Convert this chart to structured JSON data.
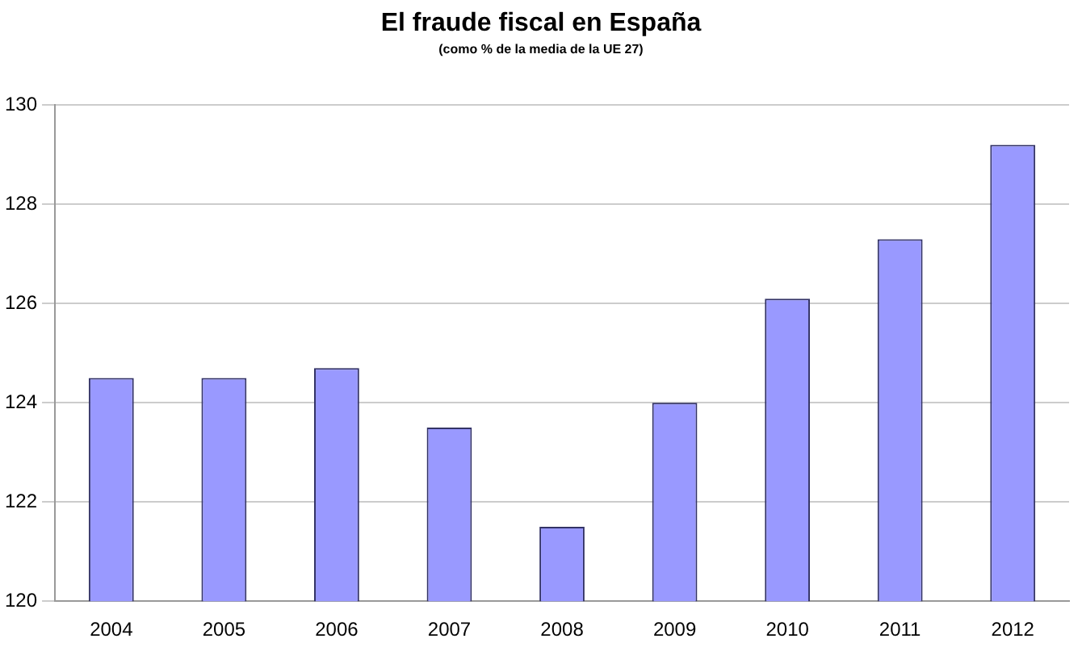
{
  "chart_data": {
    "type": "bar",
    "title": "El fraude fiscal en España",
    "subtitle": "(como % de la media de la UE 27)",
    "categories": [
      "2004",
      "2005",
      "2006",
      "2007",
      "2008",
      "2009",
      "2010",
      "2011",
      "2012"
    ],
    "values": [
      124.5,
      124.5,
      124.7,
      123.5,
      121.5,
      124.0,
      126.1,
      127.3,
      129.2
    ],
    "color": "#9999ff",
    "ylim": [
      120,
      130
    ],
    "yticks": [
      120,
      122,
      124,
      126,
      128,
      130
    ],
    "grid": "y"
  }
}
